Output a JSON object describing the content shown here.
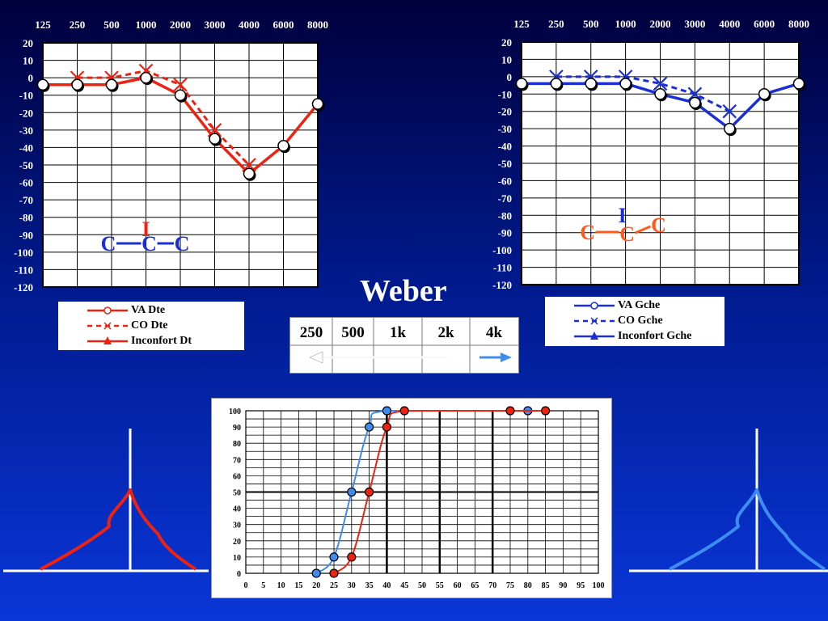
{
  "colors": {
    "right": "#ee2211",
    "left": "#1a2fd6",
    "light_blue": "#3f8cf0",
    "co_orange": "#ff5a1e"
  },
  "chart_data": [
    {
      "type": "line",
      "side": "right",
      "x_categories": [
        "125",
        "250",
        "500",
        "1000",
        "2000",
        "3000",
        "4000",
        "6000",
        "8000"
      ],
      "y_ticks": [
        "20",
        "10",
        "0",
        "-10",
        "-20",
        "-30",
        "-40",
        "-50",
        "-60",
        "-70",
        "-80",
        "-90",
        "-100",
        "-110",
        "-120"
      ],
      "ylim": [
        -120,
        20
      ],
      "grid": true,
      "series": [
        {
          "name": "VA Dte",
          "style": "solid-circle",
          "values": [
            -4,
            -4,
            -4,
            0,
            -10,
            -35,
            -55,
            -39,
            -15
          ]
        },
        {
          "name": "CO Dte",
          "style": "dashed-x",
          "values": [
            null,
            0,
            0,
            4,
            -4,
            -30,
            -50,
            null,
            null
          ]
        },
        {
          "name": "Inconfort Dt",
          "style": "solid-triangle",
          "values": []
        }
      ],
      "annotation": {
        "I": "I",
        "C1": "C",
        "C2": "C",
        "C3": "C"
      }
    },
    {
      "type": "line",
      "side": "left",
      "x_categories": [
        "125",
        "250",
        "500",
        "1000",
        "2000",
        "3000",
        "4000",
        "6000",
        "8000"
      ],
      "y_ticks": [
        "20",
        "10",
        "0",
        "-10",
        "-20",
        "-30",
        "-40",
        "-50",
        "-60",
        "-70",
        "-80",
        "-90",
        "-100",
        "-110",
        "-120"
      ],
      "ylim": [
        -120,
        20
      ],
      "grid": true,
      "series": [
        {
          "name": "VA Gche",
          "style": "solid-circle",
          "values": [
            -4,
            -4,
            -4,
            -4,
            -10,
            -15,
            -30,
            -10,
            -4
          ]
        },
        {
          "name": "CO Gche",
          "style": "dashed-x",
          "values": [
            null,
            0,
            0,
            0,
            -4,
            -10,
            -20,
            null,
            null
          ]
        },
        {
          "name": "Inconfort Gche",
          "style": "solid-triangle",
          "values": []
        }
      ],
      "annotation": {
        "I": "I",
        "C1": "C",
        "C2": "C",
        "C3": "C"
      }
    },
    {
      "type": "line",
      "side": "speech",
      "x_ticks": [
        "0",
        "5",
        "10",
        "15",
        "20",
        "25",
        "30",
        "35",
        "40",
        "45",
        "50",
        "55",
        "60",
        "65",
        "70",
        "75",
        "80",
        "85",
        "90",
        "95",
        "100"
      ],
      "y_ticks": [
        "100",
        "90",
        "80",
        "70",
        "60",
        "50",
        "40",
        "30",
        "20",
        "10",
        "0"
      ],
      "xlim": [
        0,
        100
      ],
      "ylim": [
        0,
        100
      ],
      "grid": true,
      "series": [
        {
          "color": "left_light",
          "points": [
            [
              20,
              0
            ],
            [
              25,
              10
            ],
            [
              30,
              50
            ],
            [
              35,
              90
            ],
            [
              40,
              100
            ],
            [
              75,
              100
            ],
            [
              80,
              100
            ]
          ],
          "markers": [
            [
              20,
              0
            ],
            [
              25,
              10
            ],
            [
              30,
              50
            ],
            [
              35,
              90
            ],
            [
              40,
              100
            ],
            [
              80,
              100
            ]
          ]
        },
        {
          "color": "right",
          "points": [
            [
              25,
              0
            ],
            [
              30,
              10
            ],
            [
              35,
              50
            ],
            [
              40,
              90
            ],
            [
              45,
              100
            ],
            [
              75,
              100
            ],
            [
              85,
              100
            ]
          ],
          "markers": [
            [
              25,
              0
            ],
            [
              30,
              10
            ],
            [
              35,
              50
            ],
            [
              40,
              90
            ],
            [
              45,
              100
            ],
            [
              75,
              100
            ],
            [
              85,
              100
            ]
          ]
        }
      ]
    }
  ],
  "legend_right": [
    {
      "label": "VA Dte",
      "style": "solid-circle"
    },
    {
      "label": "CO  Dte",
      "style": "dashed-x"
    },
    {
      "label": "Inconfort Dt",
      "style": "solid-triangle"
    }
  ],
  "legend_left": [
    {
      "label": "VA Gche",
      "style": "solid-circle"
    },
    {
      "label": "CO  Gche",
      "style": "dashed-x"
    },
    {
      "label": "Inconfort Gche",
      "style": "solid-triangle"
    }
  ],
  "weber": {
    "title": "Weber",
    "freqs": [
      "250",
      "500",
      "1k",
      "2k",
      "4k"
    ],
    "arrows": [
      {
        "dir": "left",
        "from": 0,
        "to": 3,
        "color": "#ffffff"
      },
      {
        "dir": "right",
        "from": 4,
        "to": 4,
        "color": "#3f8cf0"
      }
    ]
  }
}
